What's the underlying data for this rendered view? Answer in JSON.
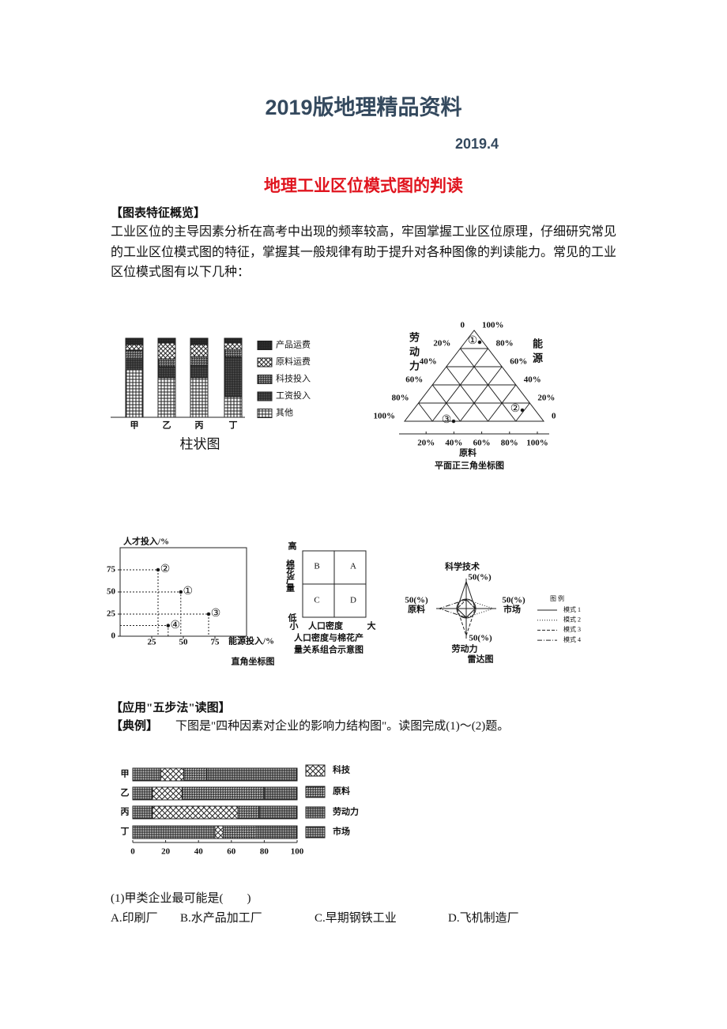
{
  "header": {
    "title": "2019版地理精品资料",
    "date": "2019.4"
  },
  "article_title": "地理工业区位模式图的判读",
  "section1": {
    "heading": "【图表特征概览】",
    "paragraph": "工业区位的主导因素分析在高考中出现的频率较高，牢固掌握工业区位原理，仔细研究常见的工业区位模式图的特征，掌握其一般规律有助于提升对各种图像的判读能力。常见的工业区位模式图有以下几种："
  },
  "bar_chart": {
    "type": "stacked-bar",
    "categories": [
      "甲",
      "乙",
      "丙",
      "丁"
    ],
    "ylim": [
      0,
      100
    ],
    "series": [
      {
        "name": "产品运费",
        "values": [
          8,
          6,
          8,
          6
        ]
      },
      {
        "name": "原料运费",
        "values": [
          7,
          20,
          15,
          8
        ]
      },
      {
        "name": "科技投入",
        "values": [
          10,
          10,
          12,
          10
        ]
      },
      {
        "name": "工资投入",
        "values": [
          15,
          14,
          15,
          50
        ]
      },
      {
        "name": "其他",
        "values": [
          60,
          50,
          50,
          26
        ]
      }
    ],
    "caption": "柱状图"
  },
  "triangle_chart": {
    "type": "ternary",
    "axes": [
      {
        "name": "劳动力",
        "ticks": [
          0,
          {
            "value": 20,
            "label": "20%"
          },
          {
            "value": 40,
            "label": "40%"
          },
          {
            "value": 60,
            "label": "60%"
          },
          {
            "value": 80,
            "label": "80%"
          },
          {
            "value": 100,
            "label": "100%"
          }
        ]
      },
      {
        "name": "能源",
        "ticks": [
          {
            "value": 100,
            "label": "100%"
          },
          {
            "value": 80,
            "label": "80%"
          },
          {
            "value": 60,
            "label": "60%"
          },
          {
            "value": 40,
            "label": "40%"
          },
          {
            "value": 20,
            "label": "20%"
          },
          0
        ]
      },
      {
        "name": "原料",
        "ticks": [
          {
            "value": 20,
            "label": "20%"
          },
          {
            "value": 40,
            "label": "40%"
          },
          {
            "value": 60,
            "label": "60%"
          },
          {
            "value": 80,
            "label": "80%"
          },
          {
            "value": 100,
            "label": "100%"
          }
        ]
      }
    ],
    "points": [
      "①",
      "②",
      "③"
    ],
    "caption": "平面正三角坐标图"
  },
  "scatter_chart": {
    "type": "scatter",
    "ylabel": "人才投入/%",
    "xlabel": "能源投入/%",
    "xlim": [
      0,
      100
    ],
    "ylim": [
      0,
      100
    ],
    "yticks": [
      0,
      25,
      50,
      75
    ],
    "xticks": [
      25,
      50,
      75
    ],
    "points": [
      {
        "label": "①",
        "x": 48,
        "y": 50
      },
      {
        "label": "②",
        "x": 30,
        "y": 75
      },
      {
        "label": "③",
        "x": 70,
        "y": 25
      },
      {
        "label": "④",
        "x": 38,
        "y": 12
      }
    ],
    "caption": "直角坐标图"
  },
  "quadrant_chart": {
    "type": "quadrant",
    "y_high": "高",
    "y_label": "棉花产量",
    "y_low": "低",
    "x_low": "小",
    "x_label": "人口密度",
    "x_high": "大",
    "cells": [
      "B",
      "A",
      "C",
      "D"
    ],
    "caption": [
      "人口密度与棉花产",
      "量关系组合示意图"
    ]
  },
  "radar_chart": {
    "type": "radar",
    "rlim": [
      0,
      50
    ],
    "axes": [
      {
        "name": "科学技术",
        "tick": {
          "value": 50,
          "label": "50(%)"
        }
      },
      {
        "name": "市场",
        "tick": {
          "value": 50,
          "label": "50(%)"
        }
      },
      {
        "name": "劳动力",
        "tick": {
          "value": 50,
          "label": "50(%)"
        }
      },
      {
        "name": "原料",
        "tick": {
          "value": 50,
          "label": "50(%)"
        }
      }
    ],
    "legend_title": "图 例",
    "series": [
      {
        "name": "模式 1",
        "dash": "solid",
        "values": [
          45,
          15,
          15,
          15
        ]
      },
      {
        "name": "模式 2",
        "dash": "dotted",
        "values": [
          15,
          45,
          15,
          15
        ]
      },
      {
        "name": "模式 3",
        "dash": "dashed",
        "values": [
          15,
          15,
          45,
          15
        ]
      },
      {
        "name": "模式 4",
        "dash": "dashdot",
        "values": [
          15,
          15,
          15,
          45
        ]
      }
    ],
    "caption": "雷达图"
  },
  "section2": {
    "heading": "【应用\"五步法\"读图】",
    "example_label": "【典例】",
    "example_text": "下图是\"四种因素对企业的影响力结构图\"。读图完成(1)～(2)题。"
  },
  "structure_chart": {
    "type": "stacked-hbar",
    "categories": [
      "甲",
      "乙",
      "丙",
      "丁"
    ],
    "xlim": [
      0,
      100
    ],
    "xticks": [
      0,
      20,
      40,
      60,
      80,
      100
    ],
    "series": [
      {
        "name": "科技",
        "values": [
          14,
          18,
          52,
          5
        ]
      },
      {
        "name": "原料",
        "values": [
          14,
          50,
          13,
          20
        ]
      },
      {
        "name": "劳动力",
        "values": [
          55,
          20,
          23,
          25
        ]
      },
      {
        "name": "市场",
        "values": [
          17,
          12,
          12,
          50
        ]
      }
    ]
  },
  "question": {
    "stem": "(1)甲类企业最可能是(　　)",
    "options": [
      "A.印刷厂",
      "B.水产品加工厂",
      "C.早期钢铁工业",
      "D.飞机制造厂"
    ]
  }
}
